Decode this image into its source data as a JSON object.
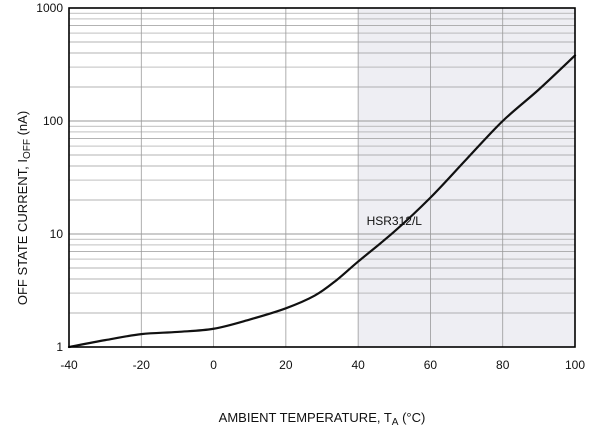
{
  "chart_data": {
    "type": "line",
    "title": "",
    "xlabel": {
      "main": "AMBIENT TEMPERATURE, T",
      "sub": "A",
      "unit": " (°C)"
    },
    "ylabel": {
      "main": "OFF STATE CURRENT, I",
      "sub": "OFF",
      "unit": " (nA)"
    },
    "xlim": [
      -40,
      100
    ],
    "ylim": [
      1,
      1000
    ],
    "yscale": "log",
    "grid": true,
    "x_ticks": [
      -40,
      -20,
      0,
      20,
      40,
      60,
      80,
      100
    ],
    "x_tick_labels": [
      "-40",
      "-20",
      "0",
      "20",
      "40",
      "60",
      "80",
      "100"
    ],
    "y_ticks": [
      1,
      10,
      100,
      1000
    ],
    "y_tick_labels": [
      "1",
      "10",
      "100",
      "1000"
    ],
    "series": [
      {
        "name": "HSR312/L",
        "x": [
          -40,
          -30,
          -20,
          -10,
          0,
          10,
          20,
          28,
          34,
          40,
          50,
          60,
          70,
          80,
          90,
          100
        ],
        "y": [
          1.0,
          1.15,
          1.3,
          1.36,
          1.45,
          1.75,
          2.2,
          2.85,
          3.9,
          5.7,
          10.5,
          21,
          46,
          100,
          190,
          380
        ]
      }
    ],
    "annotations": [
      {
        "text": "HSR312/L",
        "x": 50,
        "y": 12
      }
    ],
    "colors": {
      "background": "#ffffff",
      "shaded_band": "#eeeef3",
      "grid": "#9a9a9a",
      "frame": "#000000",
      "line": "#111111"
    }
  }
}
